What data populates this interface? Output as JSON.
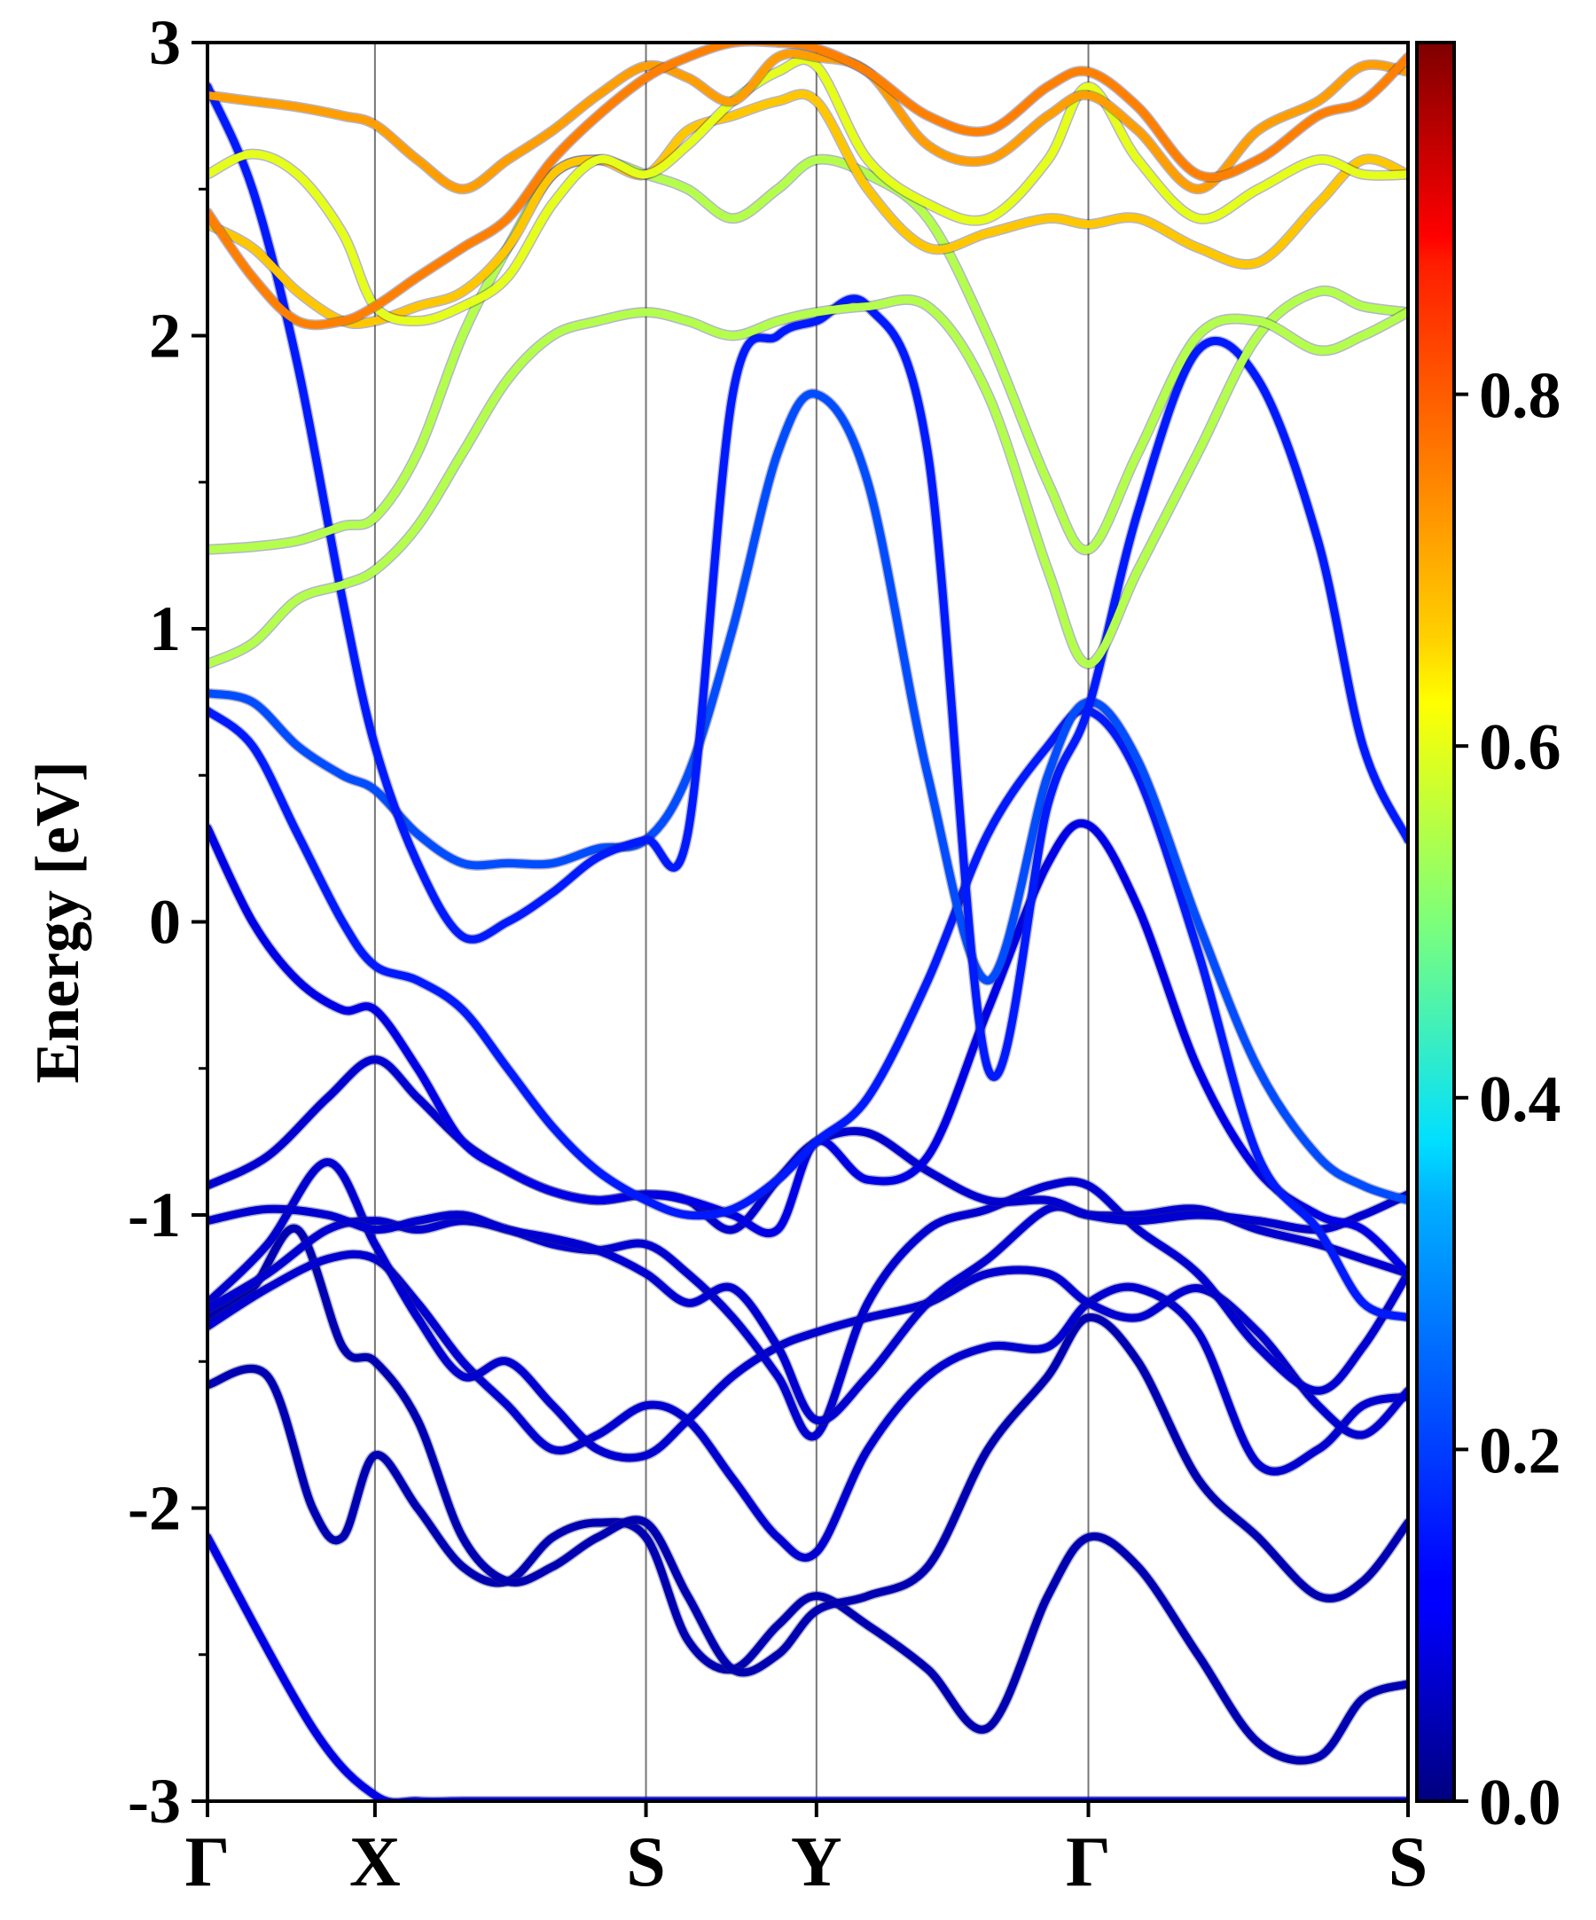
{
  "chart_data": {
    "type": "line",
    "title": "",
    "xlabel": "",
    "ylabel": "Energy [eV]",
    "ylim": [
      -3,
      3
    ],
    "yticks": [
      "3",
      "2",
      "1",
      "0",
      "-1",
      "-2",
      "-3"
    ],
    "k_points": [
      {
        "label": "Γ",
        "k": 0.0
      },
      {
        "label": "X",
        "k": 0.558
      },
      {
        "label": "S",
        "k": 1.461
      },
      {
        "label": "Y",
        "k": 2.029
      },
      {
        "label": "Γ",
        "k": 2.935
      },
      {
        "label": "S",
        "k": 4.0
      }
    ],
    "colorbar": {
      "min": 0.0,
      "max": 1.0,
      "tick_values": [
        0.0,
        0.2,
        0.4,
        0.6,
        0.8
      ],
      "tick_labels": [
        "0.0",
        "0.2",
        "0.4",
        "0.6",
        "0.8"
      ],
      "colormap": "jet"
    },
    "grid": false,
    "legend": "none",
    "bands": [
      {
        "k": [
          0.0,
          0.35,
          0.558,
          0.7,
          0.85,
          1.0,
          1.15,
          1.3,
          1.461,
          1.6,
          1.75,
          1.9,
          2.029,
          2.2,
          2.4,
          2.6,
          2.8,
          2.935,
          3.1,
          3.3,
          3.5,
          3.7,
          3.85,
          4.0
        ],
        "e": [
          -2.1,
          -2.75,
          -2.98,
          -3.0,
          -3.0,
          -3.0,
          -3.0,
          -3.0,
          -3.0,
          -3.0,
          -3.0,
          -3.0,
          -3.0,
          -3.0,
          -3.0,
          -3.0,
          -3.0,
          -3.0,
          -3.0,
          -3.0,
          -3.0,
          -3.0,
          -3.0,
          -3.0
        ],
        "w": 0.1
      },
      {
        "k": [
          0.0,
          0.2,
          0.35,
          0.45,
          0.558,
          0.7,
          0.85,
          1.0,
          1.15,
          1.3,
          1.461,
          1.6,
          1.75,
          1.9,
          2.029,
          2.2,
          2.4,
          2.6,
          2.8,
          2.935,
          3.1,
          3.3,
          3.5,
          3.7,
          3.85,
          4.0
        ],
        "e": [
          -1.58,
          -1.55,
          -2.0,
          -2.1,
          -1.82,
          -2.0,
          -2.2,
          -2.25,
          -2.1,
          -2.05,
          -2.1,
          -2.45,
          -2.55,
          -2.4,
          -2.3,
          -2.4,
          -2.55,
          -2.75,
          -2.3,
          -2.1,
          -2.2,
          -2.5,
          -2.8,
          -2.85,
          -2.65,
          -2.6
        ],
        "w": 0.05
      },
      {
        "k": [
          0.0,
          0.15,
          0.3,
          0.45,
          0.558,
          0.7,
          0.85,
          1.0,
          1.15,
          1.3,
          1.461,
          1.6,
          1.75,
          1.9,
          2.029,
          2.2,
          2.4,
          2.6,
          2.8,
          2.935,
          3.1,
          3.3,
          3.5,
          3.7,
          3.85,
          4.0
        ],
        "e": [
          -1.35,
          -1.25,
          -1.05,
          -1.45,
          -1.5,
          -1.7,
          -2.1,
          -2.25,
          -2.2,
          -2.1,
          -2.05,
          -2.3,
          -2.55,
          -2.5,
          -2.35,
          -2.3,
          -2.2,
          -1.8,
          -1.55,
          -1.35,
          -1.5,
          -1.9,
          -2.1,
          -2.3,
          -2.25,
          -2.05
        ],
        "w": 0.05
      },
      {
        "k": [
          0.0,
          0.2,
          0.4,
          0.558,
          0.7,
          0.85,
          1.0,
          1.15,
          1.3,
          1.461,
          1.6,
          1.75,
          1.9,
          2.029,
          2.2,
          2.4,
          2.6,
          2.8,
          2.935,
          3.1,
          3.3,
          3.5,
          3.7,
          3.85,
          4.0
        ],
        "e": [
          -1.38,
          -1.25,
          -1.15,
          -1.15,
          -1.3,
          -1.5,
          -1.65,
          -1.8,
          -1.75,
          -1.65,
          -1.7,
          -1.9,
          -2.1,
          -2.15,
          -1.8,
          -1.55,
          -1.45,
          -1.45,
          -1.3,
          -1.25,
          -1.4,
          -1.85,
          -1.8,
          -1.65,
          -1.62
        ],
        "w": 0.08
      },
      {
        "k": [
          0.0,
          0.2,
          0.4,
          0.558,
          0.7,
          0.85,
          1.0,
          1.15,
          1.3,
          1.461,
          1.6,
          1.75,
          1.9,
          2.029,
          2.2,
          2.4,
          2.6,
          2.8,
          2.935,
          3.1,
          3.3,
          3.5,
          3.7,
          3.85,
          4.0
        ],
        "e": [
          -1.3,
          -1.1,
          -0.82,
          -1.1,
          -1.35,
          -1.55,
          -1.5,
          -1.65,
          -1.8,
          -1.82,
          -1.7,
          -1.55,
          -1.45,
          -1.4,
          -1.35,
          -1.3,
          -1.2,
          -1.2,
          -1.3,
          -1.35,
          -1.25,
          -1.4,
          -1.65,
          -1.75,
          -1.6
        ],
        "w": 0.08
      },
      {
        "k": [
          0.0,
          0.2,
          0.4,
          0.558,
          0.7,
          0.85,
          1.0,
          1.15,
          1.3,
          1.461,
          1.6,
          1.75,
          1.9,
          2.029,
          2.2,
          2.4,
          2.6,
          2.8,
          2.935,
          3.1,
          3.3,
          3.5,
          3.7,
          3.85,
          4.0
        ],
        "e": [
          -1.32,
          -1.2,
          -1.05,
          -1.02,
          -1.05,
          -1.02,
          -1.05,
          -1.1,
          -1.12,
          -1.1,
          -1.2,
          -1.35,
          -1.55,
          -1.75,
          -1.3,
          -1.05,
          -0.98,
          -0.9,
          -0.9,
          -1.05,
          -1.2,
          -1.45,
          -1.6,
          -1.45,
          -1.2
        ],
        "w": 0.08
      },
      {
        "k": [
          0.0,
          0.2,
          0.4,
          0.558,
          0.7,
          0.85,
          1.0,
          1.15,
          1.3,
          1.461,
          1.6,
          1.75,
          1.9,
          2.029,
          2.2,
          2.4,
          2.6,
          2.8,
          2.935,
          3.1,
          3.3,
          3.5,
          3.7,
          3.85,
          4.0
        ],
        "e": [
          -1.02,
          -0.98,
          -1.0,
          -1.05,
          -1.02,
          -1.0,
          -1.05,
          -1.08,
          -1.12,
          -1.2,
          -1.3,
          -1.25,
          -1.45,
          -1.7,
          -1.55,
          -1.3,
          -1.15,
          -0.98,
          -1.0,
          -1.0,
          -0.98,
          -1.05,
          -1.1,
          -1.15,
          -1.2
        ],
        "w": 0.08
      },
      {
        "k": [
          0.0,
          0.2,
          0.4,
          0.558,
          0.7,
          0.85,
          1.0,
          1.15,
          1.3,
          1.461,
          1.6,
          1.75,
          1.9,
          2.029,
          2.2,
          2.4,
          2.6,
          2.8,
          2.935,
          3.1,
          3.3,
          3.5,
          3.7,
          3.85,
          4.0
        ],
        "e": [
          -0.9,
          -0.8,
          -0.6,
          -0.47,
          -0.6,
          -0.75,
          -0.85,
          -0.92,
          -0.95,
          -0.93,
          -0.95,
          -1.05,
          -0.88,
          -0.75,
          -0.72,
          -0.85,
          -0.95,
          -0.95,
          -1.0,
          -1.02,
          -1.0,
          -1.02,
          -1.05,
          -1.0,
          -0.93
        ],
        "w": 0.08
      },
      {
        "k": [
          0.0,
          0.15,
          0.3,
          0.45,
          0.558,
          0.7,
          0.85,
          1.0,
          1.15,
          1.3,
          1.461,
          1.6,
          1.75,
          1.9,
          2.029,
          2.2,
          2.4,
          2.6,
          2.8,
          2.935,
          3.1,
          3.3,
          3.5,
          3.7,
          3.85,
          4.0
        ],
        "e": [
          0.32,
          0.0,
          -0.2,
          -0.3,
          -0.3,
          -0.5,
          -0.75,
          -0.85,
          -0.92,
          -0.95,
          -0.93,
          -0.95,
          -1.0,
          -1.05,
          -0.75,
          -0.88,
          -0.8,
          -0.3,
          0.2,
          0.33,
          0.05,
          -0.5,
          -0.85,
          -1.0,
          -1.05,
          -1.2
        ],
        "w": 0.1
      },
      {
        "k": [
          0.0,
          0.15,
          0.3,
          0.45,
          0.558,
          0.7,
          0.85,
          1.0,
          1.15,
          1.3,
          1.461,
          1.6,
          1.75,
          1.9,
          2.029,
          2.2,
          2.4,
          2.6,
          2.8,
          2.935,
          3.1,
          3.3,
          3.5,
          3.7,
          3.85,
          4.0
        ],
        "e": [
          0.72,
          0.6,
          0.3,
          0.0,
          -0.15,
          -0.2,
          -0.3,
          -0.5,
          -0.7,
          -0.85,
          -0.95,
          -1.0,
          -0.98,
          -0.88,
          -0.75,
          -0.6,
          -0.2,
          0.3,
          0.6,
          0.72,
          0.5,
          -0.1,
          -0.8,
          -1.05,
          -1.3,
          -1.35
        ],
        "w": 0.15
      },
      {
        "k": [
          0.0,
          0.15,
          0.3,
          0.45,
          0.558,
          0.7,
          0.85,
          1.0,
          1.15,
          1.3,
          1.461,
          1.6,
          1.75,
          1.9,
          2.029,
          2.2,
          2.4,
          2.6,
          2.8,
          2.935,
          3.1,
          3.3,
          3.5,
          3.7,
          3.85,
          4.0
        ],
        "e": [
          0.78,
          0.75,
          0.6,
          0.5,
          0.45,
          0.3,
          0.2,
          0.2,
          0.2,
          0.25,
          0.28,
          0.5,
          1.0,
          1.6,
          1.8,
          1.5,
          0.5,
          -0.2,
          0.5,
          0.75,
          0.55,
          0.0,
          -0.5,
          -0.8,
          -0.9,
          -0.95
        ],
        "w": 0.2
      },
      {
        "k": [
          0.0,
          0.15,
          0.3,
          0.45,
          0.558,
          0.7,
          0.85,
          1.0,
          1.15,
          1.3,
          1.461,
          1.6,
          1.75,
          1.9,
          2.029,
          2.2,
          2.4,
          2.6,
          2.8,
          2.935,
          3.1,
          3.3,
          3.5,
          3.7,
          3.85,
          4.0
        ],
        "e": [
          2.85,
          2.5,
          1.9,
          1.1,
          0.6,
          0.2,
          -0.05,
          0.0,
          0.1,
          0.22,
          0.28,
          0.3,
          1.8,
          2.0,
          2.05,
          2.1,
          1.6,
          -0.5,
          0.4,
          0.73,
          1.4,
          1.95,
          1.85,
          1.3,
          0.6,
          0.28
        ],
        "w": 0.15
      },
      {
        "k": [
          0.0,
          0.15,
          0.3,
          0.45,
          0.558,
          0.7,
          0.85,
          1.0,
          1.15,
          1.3,
          1.461,
          1.6,
          1.75,
          1.9,
          2.029,
          2.2,
          2.4,
          2.6,
          2.8,
          2.935,
          3.1,
          3.3,
          3.5,
          3.7,
          3.85,
          4.0
        ],
        "e": [
          0.88,
          0.95,
          1.1,
          1.15,
          1.2,
          1.35,
          1.6,
          1.85,
          2.0,
          2.05,
          2.08,
          2.05,
          2.0,
          2.05,
          2.08,
          2.1,
          2.1,
          1.8,
          1.2,
          0.88,
          1.2,
          1.6,
          2.0,
          2.15,
          2.1,
          2.08
        ],
        "w": 0.55
      },
      {
        "k": [
          0.0,
          0.15,
          0.3,
          0.45,
          0.558,
          0.7,
          0.85,
          1.0,
          1.15,
          1.3,
          1.461,
          1.6,
          1.75,
          1.9,
          2.029,
          2.2,
          2.4,
          2.6,
          2.8,
          2.935,
          3.1,
          3.3,
          3.5,
          3.7,
          3.85,
          4.0
        ],
        "e": [
          1.27,
          1.28,
          1.3,
          1.35,
          1.38,
          1.6,
          2.0,
          2.3,
          2.55,
          2.6,
          2.55,
          2.5,
          2.4,
          2.5,
          2.6,
          2.55,
          2.4,
          2.0,
          1.5,
          1.27,
          1.6,
          2.0,
          2.05,
          1.95,
          2.0,
          2.08
        ],
        "w": 0.55
      },
      {
        "k": [
          0.0,
          0.15,
          0.3,
          0.45,
          0.558,
          0.7,
          0.85,
          1.0,
          1.15,
          1.3,
          1.461,
          1.6,
          1.75,
          1.9,
          2.029,
          2.2,
          2.4,
          2.6,
          2.8,
          2.935,
          3.1,
          3.3,
          3.5,
          3.7,
          3.85,
          4.0
        ],
        "e": [
          2.38,
          2.3,
          2.15,
          2.05,
          2.05,
          2.1,
          2.15,
          2.3,
          2.55,
          2.6,
          2.55,
          2.7,
          2.75,
          2.8,
          2.8,
          2.5,
          2.3,
          2.35,
          2.4,
          2.38,
          2.4,
          2.3,
          2.25,
          2.45,
          2.6,
          2.55
        ],
        "w": 0.68
      },
      {
        "k": [
          0.0,
          0.15,
          0.3,
          0.45,
          0.558,
          0.7,
          0.85,
          1.0,
          1.15,
          1.3,
          1.461,
          1.6,
          1.75,
          1.9,
          2.029,
          2.2,
          2.4,
          2.6,
          2.8,
          2.935,
          3.1,
          3.3,
          3.5,
          3.7,
          3.85,
          4.0
        ],
        "e": [
          2.55,
          2.62,
          2.55,
          2.35,
          2.1,
          2.05,
          2.1,
          2.2,
          2.45,
          2.6,
          2.55,
          2.65,
          2.8,
          2.9,
          2.92,
          2.6,
          2.45,
          2.4,
          2.6,
          2.85,
          2.6,
          2.4,
          2.5,
          2.6,
          2.55,
          2.55
        ],
        "w": 0.6
      },
      {
        "k": [
          0.0,
          0.15,
          0.3,
          0.45,
          0.558,
          0.7,
          0.85,
          1.0,
          1.15,
          1.3,
          1.461,
          1.6,
          1.75,
          1.9,
          2.029,
          2.2,
          2.4,
          2.6,
          2.8,
          2.935,
          3.1,
          3.3,
          3.5,
          3.7,
          3.85,
          4.0
        ],
        "e": [
          2.82,
          2.8,
          2.78,
          2.75,
          2.72,
          2.6,
          2.5,
          2.6,
          2.7,
          2.82,
          2.92,
          2.88,
          2.8,
          2.95,
          2.95,
          2.9,
          2.65,
          2.6,
          2.75,
          2.82,
          2.7,
          2.5,
          2.7,
          2.8,
          2.92,
          2.9
        ],
        "w": 0.72
      },
      {
        "k": [
          0.0,
          0.15,
          0.3,
          0.45,
          0.558,
          0.7,
          0.85,
          1.0,
          1.15,
          1.3,
          1.461,
          1.6,
          1.75,
          1.9,
          2.029,
          2.2,
          2.4,
          2.6,
          2.8,
          2.935,
          3.1,
          3.3,
          3.5,
          3.7,
          3.85,
          4.0
        ],
        "e": [
          2.42,
          2.2,
          2.05,
          2.05,
          2.1,
          2.2,
          2.3,
          2.4,
          2.6,
          2.75,
          2.88,
          2.95,
          3.0,
          3.0,
          2.98,
          2.9,
          2.75,
          2.7,
          2.85,
          2.9,
          2.78,
          2.55,
          2.6,
          2.75,
          2.8,
          2.95
        ],
        "w": 0.75
      }
    ]
  }
}
